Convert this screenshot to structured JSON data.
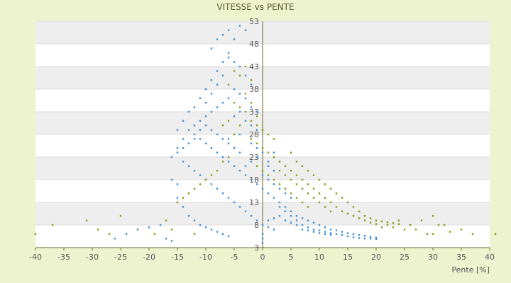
{
  "chart_data": {
    "type": "scatter",
    "title": "VITESSE vs PENTE",
    "xlabel": "Pente [%]",
    "ylabel": "",
    "xlim": [
      -40,
      40
    ],
    "ylim": [
      3,
      53
    ],
    "x_ticks": [
      "-40",
      "-35",
      "-30",
      "-25",
      "-20",
      "-15",
      "-10",
      "-5",
      "0",
      "5",
      "10",
      "15",
      "20",
      "25",
      "30",
      "35",
      "40"
    ],
    "y_ticks": [
      "3",
      "8",
      "13",
      "18",
      "23",
      "28",
      "33",
      "38",
      "43",
      "48",
      "53"
    ],
    "grid": true,
    "series_colors": [
      "#3b8fd6",
      "#8a9a10"
    ],
    "series": [
      {
        "values": [
          [
            -9,
            47
          ],
          [
            -8,
            49
          ],
          [
            -7,
            50
          ],
          [
            -6,
            51
          ],
          [
            -5,
            49
          ],
          [
            -4,
            52
          ],
          [
            -3,
            51
          ],
          [
            -6,
            46
          ],
          [
            -7,
            44
          ],
          [
            -8,
            42
          ],
          [
            -9,
            40
          ],
          [
            -10,
            38
          ],
          [
            -11,
            36
          ],
          [
            -12,
            34
          ],
          [
            -13,
            33
          ],
          [
            -14,
            31
          ],
          [
            -15,
            29
          ],
          [
            -12,
            28
          ],
          [
            -11,
            27
          ],
          [
            -10,
            26
          ],
          [
            -9,
            25
          ],
          [
            -8,
            24
          ],
          [
            -7,
            23
          ],
          [
            -6,
            22
          ],
          [
            -5,
            21
          ],
          [
            -4,
            20
          ],
          [
            -3,
            19
          ],
          [
            -2,
            18
          ],
          [
            -1,
            17
          ],
          [
            0,
            16
          ],
          [
            1,
            15
          ],
          [
            2,
            14
          ],
          [
            3,
            13
          ],
          [
            4,
            12
          ],
          [
            5,
            11
          ],
          [
            6,
            10
          ],
          [
            7,
            9.5
          ],
          [
            8,
            9
          ],
          [
            9,
            8.5
          ],
          [
            10,
            8
          ],
          [
            11,
            7.5
          ],
          [
            12,
            7
          ],
          [
            13,
            6.8
          ],
          [
            14,
            6.5
          ],
          [
            15,
            6.2
          ],
          [
            16,
            6
          ],
          [
            17,
            5.8
          ],
          [
            18,
            5.6
          ],
          [
            19,
            5.4
          ],
          [
            20,
            5.2
          ],
          [
            -3,
            36
          ],
          [
            -2,
            34
          ],
          [
            -4,
            33
          ],
          [
            -5,
            32
          ],
          [
            -3,
            31
          ],
          [
            -2,
            30
          ],
          [
            -1,
            29
          ],
          [
            -4,
            28
          ],
          [
            -6,
            27
          ],
          [
            -2,
            26
          ],
          [
            -1,
            25
          ],
          [
            0,
            24
          ],
          [
            1,
            22
          ],
          [
            2,
            20
          ],
          [
            0,
            19
          ],
          [
            1,
            18
          ],
          [
            2,
            17
          ],
          [
            3,
            16
          ],
          [
            4,
            15
          ],
          [
            5,
            14
          ],
          [
            3,
            12
          ],
          [
            4,
            11
          ],
          [
            5,
            10
          ],
          [
            6,
            9
          ],
          [
            7,
            8
          ],
          [
            8,
            7.5
          ],
          [
            9,
            7
          ],
          [
            10,
            6.8
          ],
          [
            11,
            6.5
          ],
          [
            12,
            6.2
          ],
          [
            -5,
            38
          ],
          [
            -4,
            37
          ],
          [
            -6,
            36
          ],
          [
            -7,
            35
          ],
          [
            -8,
            34
          ],
          [
            -9,
            33
          ],
          [
            -10,
            32
          ],
          [
            -11,
            31
          ],
          [
            -12,
            30
          ],
          [
            -13,
            29
          ],
          [
            -14,
            27
          ],
          [
            -15,
            25
          ],
          [
            -16,
            23
          ],
          [
            -14,
            22
          ],
          [
            -13,
            21
          ],
          [
            -12,
            20
          ],
          [
            -11,
            19
          ],
          [
            -10,
            18
          ],
          [
            -9,
            17
          ],
          [
            -8,
            16
          ],
          [
            -7,
            15
          ],
          [
            -6,
            14
          ],
          [
            -5,
            13
          ],
          [
            -4,
            12
          ],
          [
            -3,
            11
          ],
          [
            -2,
            10
          ],
          [
            -1,
            9
          ],
          [
            0,
            8
          ],
          [
            1,
            7.5
          ],
          [
            2,
            7
          ],
          [
            -15,
            14
          ],
          [
            -14,
            12
          ],
          [
            -13,
            10
          ],
          [
            -12,
            9
          ],
          [
            -11,
            8
          ],
          [
            -10,
            7.5
          ],
          [
            -9,
            7
          ],
          [
            -8,
            6.5
          ],
          [
            -7,
            6
          ],
          [
            -6,
            5.5
          ],
          [
            -22,
            7
          ],
          [
            -20,
            7.5
          ],
          [
            -18,
            8
          ],
          [
            -24,
            6
          ],
          [
            -26,
            5
          ],
          [
            -17,
            5
          ],
          [
            -16,
            4.5
          ],
          [
            0,
            4
          ],
          [
            0,
            5
          ],
          [
            0,
            6
          ],
          [
            1,
            9
          ],
          [
            2,
            9.5
          ],
          [
            3,
            10
          ],
          [
            4,
            9
          ],
          [
            5,
            8.5
          ],
          [
            6,
            8
          ],
          [
            7,
            7
          ],
          [
            8,
            6.8
          ],
          [
            9,
            6.5
          ],
          [
            10,
            6.2
          ],
          [
            13,
            6
          ],
          [
            14,
            5.8
          ],
          [
            15,
            5.5
          ],
          [
            16,
            5.3
          ],
          [
            18,
            5
          ],
          [
            19,
            5
          ],
          [
            20,
            4.9
          ],
          [
            17,
            5.1
          ],
          [
            11,
            6
          ],
          [
            12,
            5.8
          ],
          [
            2,
            24
          ],
          [
            3,
            22
          ],
          [
            1,
            21
          ],
          [
            -1,
            23
          ],
          [
            -2,
            22
          ],
          [
            -3,
            21
          ],
          [
            -4,
            24
          ],
          [
            -5,
            25
          ],
          [
            -6,
            26
          ],
          [
            -7,
            27
          ],
          [
            -8,
            28
          ],
          [
            -9,
            29
          ],
          [
            -10,
            30
          ],
          [
            -11,
            29
          ],
          [
            -12,
            27
          ],
          [
            -13,
            26
          ],
          [
            -14,
            25
          ],
          [
            -15,
            24
          ],
          [
            -16,
            18
          ],
          [
            -15,
            17
          ],
          [
            -3,
            41
          ],
          [
            -4,
            43
          ],
          [
            -5,
            44
          ],
          [
            -6,
            45
          ],
          [
            -7,
            41
          ],
          [
            -8,
            39
          ],
          [
            -9,
            37
          ],
          [
            -10,
            35
          ],
          [
            -2,
            39
          ],
          [
            -1,
            33
          ]
        ]
      },
      {
        "values": [
          [
            -5,
            42
          ],
          [
            -4,
            41
          ],
          [
            -3,
            43
          ],
          [
            -2,
            40
          ],
          [
            -6,
            39
          ],
          [
            -3,
            37
          ],
          [
            -2,
            35
          ],
          [
            -1,
            32
          ],
          [
            -4,
            30
          ],
          [
            -5,
            28
          ],
          [
            -2,
            27
          ],
          [
            -1,
            26
          ],
          [
            0,
            25
          ],
          [
            1,
            24
          ],
          [
            2,
            23
          ],
          [
            3,
            22
          ],
          [
            4,
            21
          ],
          [
            5,
            20
          ],
          [
            6,
            19
          ],
          [
            7,
            18
          ],
          [
            8,
            17
          ],
          [
            9,
            16
          ],
          [
            10,
            15
          ],
          [
            11,
            14
          ],
          [
            12,
            13
          ],
          [
            13,
            12
          ],
          [
            14,
            11
          ],
          [
            15,
            10.5
          ],
          [
            16,
            10
          ],
          [
            17,
            9.5
          ],
          [
            18,
            9
          ],
          [
            19,
            8.5
          ],
          [
            20,
            8.2
          ],
          [
            22,
            8
          ],
          [
            24,
            9
          ],
          [
            26,
            8
          ],
          [
            28,
            9
          ],
          [
            30,
            10
          ],
          [
            32,
            8
          ],
          [
            21,
            7.5
          ],
          [
            3,
            20
          ],
          [
            4,
            19
          ],
          [
            5,
            18
          ],
          [
            6,
            17
          ],
          [
            7,
            16
          ],
          [
            8,
            15
          ],
          [
            9,
            14
          ],
          [
            10,
            13
          ],
          [
            11,
            12
          ],
          [
            12,
            11
          ],
          [
            -1,
            21
          ],
          [
            0,
            20
          ],
          [
            1,
            19
          ],
          [
            2,
            18
          ],
          [
            3,
            17
          ],
          [
            4,
            16
          ],
          [
            5,
            15
          ],
          [
            6,
            14
          ],
          [
            7,
            13
          ],
          [
            8,
            12
          ],
          [
            -8,
            20
          ],
          [
            -9,
            19
          ],
          [
            -10,
            18
          ],
          [
            -11,
            17
          ],
          [
            -12,
            16
          ],
          [
            -13,
            15
          ],
          [
            -14,
            14
          ],
          [
            -15,
            13
          ],
          [
            -7,
            22
          ],
          [
            -6,
            23
          ],
          [
            -40,
            6
          ],
          [
            -37,
            8
          ],
          [
            -31,
            9
          ],
          [
            -29,
            7
          ],
          [
            -27,
            6
          ],
          [
            -25,
            10
          ],
          [
            -19,
            6
          ],
          [
            -17,
            9
          ],
          [
            -16,
            7
          ],
          [
            -12,
            6
          ],
          [
            30,
            6
          ],
          [
            37,
            6
          ],
          [
            41,
            6
          ],
          [
            35,
            7
          ],
          [
            29,
            6
          ],
          [
            25,
            7
          ],
          [
            23,
            7.5
          ],
          [
            27,
            7
          ],
          [
            31,
            8
          ],
          [
            33,
            6.5
          ],
          [
            -3,
            33
          ],
          [
            -4,
            34
          ],
          [
            -5,
            35
          ],
          [
            -2,
            31
          ],
          [
            -1,
            30
          ],
          [
            0,
            29
          ],
          [
            1,
            28
          ],
          [
            2,
            27
          ],
          [
            -6,
            31
          ],
          [
            -7,
            30
          ],
          [
            5,
            24
          ],
          [
            6,
            22
          ],
          [
            7,
            21
          ],
          [
            8,
            20
          ],
          [
            9,
            19
          ],
          [
            10,
            18
          ],
          [
            11,
            17
          ],
          [
            12,
            16
          ],
          [
            13,
            15
          ],
          [
            14,
            14
          ],
          [
            15,
            13
          ],
          [
            16,
            12
          ],
          [
            17,
            11
          ],
          [
            18,
            10
          ],
          [
            19,
            9.5
          ],
          [
            20,
            9
          ],
          [
            21,
            8.8
          ],
          [
            22,
            8.6
          ],
          [
            23,
            8.4
          ],
          [
            24,
            8.2
          ]
        ]
      }
    ]
  }
}
